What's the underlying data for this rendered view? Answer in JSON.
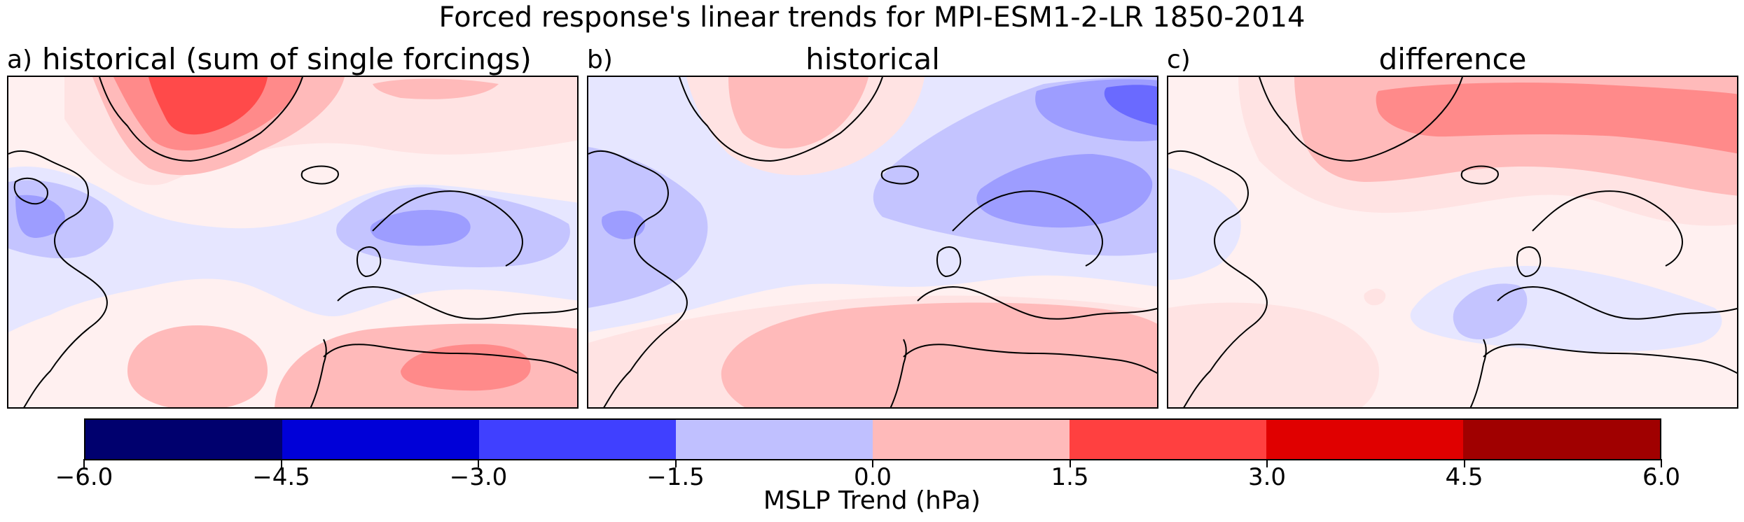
{
  "figure": {
    "title": "Forced response's linear trends for MPI-ESM1-2-LR 1850-2014"
  },
  "panels": [
    {
      "letter": "a)",
      "title": "historical (sum of single forcings)"
    },
    {
      "letter": "b)",
      "title": "historical"
    },
    {
      "letter": "c)",
      "title": "difference"
    }
  ],
  "colorbar": {
    "label": "MSLP Trend (hPa)",
    "ticks": [
      "−6.0",
      "−4.5",
      "−3.0",
      "−1.5",
      "0.0",
      "1.5",
      "3.0",
      "4.5",
      "6.0"
    ],
    "colors": [
      "#00006e",
      "#0000d8",
      "#4040ff",
      "#c0c0ff",
      "#ffbaba",
      "#ff4040",
      "#e00000",
      "#a00000"
    ]
  },
  "map_colors": {
    "background": "#fff0f0",
    "light_pink": "#ffe3e3",
    "pink": "#ffbaba",
    "mid_red": "#ff8a8a",
    "red": "#ff4a4a",
    "pale_blue": "#e6e6ff",
    "light_blue": "#c4c4ff",
    "mid_blue": "#9d9dff",
    "blue": "#6a6aff",
    "coast": "#000000"
  }
}
